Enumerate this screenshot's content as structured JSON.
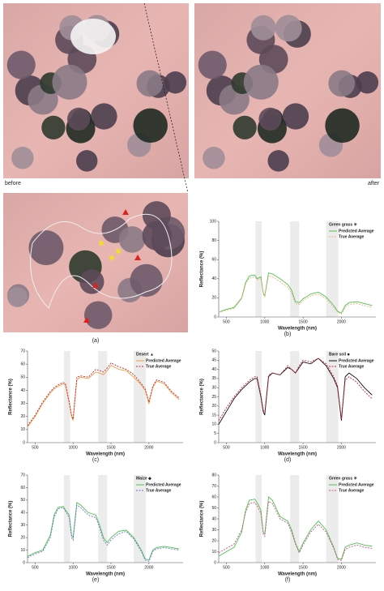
{
  "figure": {
    "before_label": "before",
    "after_label": "after",
    "image_label": "(a)"
  },
  "chart_data": [
    {
      "type": "line",
      "panel_label": "(b)",
      "legend_title": "Green grass ✳",
      "x_label": "Wavelength (nm)",
      "y_label": "Reflectance (%)",
      "xlim": [
        400,
        2450
      ],
      "xticks": [
        500,
        1000,
        1500,
        2000
      ],
      "ylim": [
        0,
        100
      ],
      "yticks": [
        0,
        20,
        40,
        60,
        80,
        100
      ],
      "shaded_bands": [
        [
          880,
          960
        ],
        [
          1330,
          1450
        ],
        [
          1800,
          1960
        ]
      ],
      "x": [
        400,
        500,
        600,
        700,
        750,
        800,
        870,
        900,
        950,
        980,
        1000,
        1050,
        1100,
        1200,
        1300,
        1350,
        1400,
        1450,
        1500,
        1600,
        1700,
        1800,
        1900,
        1950,
        2000,
        2050,
        2100,
        2200,
        2300,
        2400
      ],
      "series": [
        {
          "name": "Predicted Average",
          "color": "#4cc24c",
          "dash": false,
          "values": [
            5,
            8,
            10,
            20,
            36,
            43,
            44,
            40,
            42,
            25,
            22,
            46,
            45,
            40,
            34,
            28,
            16,
            15,
            19,
            24,
            26,
            21,
            12,
            6,
            4,
            12,
            15,
            16,
            14,
            12
          ]
        },
        {
          "name": "True Average",
          "color": "#f0b080",
          "dash": true,
          "values": [
            5,
            7,
            9,
            19,
            34,
            41,
            42,
            39,
            40,
            24,
            21,
            43,
            42,
            37,
            31,
            25,
            14,
            13,
            17,
            22,
            24,
            19,
            10,
            5,
            3,
            10,
            13,
            14,
            12,
            10
          ]
        }
      ]
    },
    {
      "type": "line",
      "panel_label": "(c)",
      "legend_title": "Desert ▲",
      "x_label": "Wavelength (nm)",
      "y_label": "Reflectance (%)",
      "xlim": [
        400,
        2450
      ],
      "xticks": [
        500,
        1000,
        1500,
        2000
      ],
      "ylim": [
        0,
        70
      ],
      "yticks": [
        0,
        10,
        20,
        30,
        40,
        50,
        60,
        70
      ],
      "shaded_bands": [
        [
          880,
          960
        ],
        [
          1330,
          1450
        ],
        [
          1800,
          1960
        ]
      ],
      "x": [
        400,
        500,
        600,
        700,
        750,
        800,
        870,
        900,
        950,
        980,
        1000,
        1050,
        1100,
        1200,
        1300,
        1350,
        1400,
        1450,
        1500,
        1600,
        1700,
        1800,
        1900,
        1950,
        2000,
        2050,
        2100,
        2200,
        2300,
        2400
      ],
      "series": [
        {
          "name": "Predicted Average",
          "color": "#e8a040",
          "dash": false,
          "values": [
            12,
            20,
            30,
            38,
            41,
            43,
            45,
            44,
            30,
            20,
            17,
            48,
            50,
            49,
            54,
            53,
            52,
            55,
            59,
            56,
            55,
            50,
            44,
            40,
            30,
            42,
            47,
            45,
            38,
            33
          ]
        },
        {
          "name": "True Average",
          "color": "#d02030",
          "dash": true,
          "values": [
            13,
            21,
            31,
            39,
            42,
            44,
            46,
            45,
            31,
            21,
            18,
            50,
            51,
            50,
            56,
            55,
            54,
            57,
            61,
            58,
            56,
            52,
            45,
            41,
            31,
            43,
            48,
            46,
            39,
            34
          ]
        }
      ]
    },
    {
      "type": "line",
      "panel_label": "(d)",
      "legend_title": "Bare soil ■",
      "x_label": "Wavelength (nm)",
      "y_label": "Reflectance (%)",
      "xlim": [
        400,
        2450
      ],
      "xticks": [
        500,
        1000,
        1500,
        2000
      ],
      "ylim": [
        0,
        50
      ],
      "yticks": [
        0,
        5,
        10,
        15,
        20,
        25,
        30,
        35,
        40,
        45,
        50
      ],
      "shaded_bands": [
        [
          880,
          960
        ],
        [
          1330,
          1450
        ],
        [
          1800,
          1960
        ]
      ],
      "x": [
        400,
        500,
        600,
        700,
        750,
        800,
        870,
        900,
        950,
        980,
        1000,
        1050,
        1100,
        1200,
        1300,
        1350,
        1400,
        1450,
        1500,
        1600,
        1700,
        1800,
        1900,
        1950,
        2000,
        2050,
        2100,
        2200,
        2300,
        2400
      ],
      "series": [
        {
          "name": "Predicted Average",
          "color": "#111111",
          "dash": false,
          "values": [
            10,
            17,
            24,
            29,
            31,
            33,
            35,
            35,
            25,
            17,
            15,
            36,
            38,
            37,
            41,
            40,
            38,
            41,
            44,
            43,
            46,
            42,
            35,
            30,
            12,
            36,
            38,
            35,
            30,
            26
          ]
        },
        {
          "name": "True Average",
          "color": "#d02030",
          "dash": true,
          "values": [
            12,
            19,
            25,
            30,
            32,
            34,
            36,
            36,
            26,
            18,
            16,
            37,
            38,
            37,
            42,
            40,
            38,
            42,
            45,
            44,
            46,
            43,
            36,
            31,
            13,
            34,
            36,
            33,
            28,
            24
          ]
        }
      ]
    },
    {
      "type": "line",
      "panel_label": "(e)",
      "legend_title": "Maize ◆",
      "x_label": "Wavelength (nm)",
      "y_label": "Reflectance (%)",
      "xlim": [
        400,
        2450
      ],
      "xticks": [
        500,
        1000,
        1500,
        2000
      ],
      "ylim": [
        0,
        70
      ],
      "yticks": [
        0,
        10,
        20,
        30,
        40,
        50,
        60,
        70
      ],
      "shaded_bands": [
        [
          880,
          960
        ],
        [
          1330,
          1450
        ],
        [
          1800,
          1960
        ]
      ],
      "x": [
        400,
        500,
        600,
        700,
        750,
        800,
        870,
        900,
        950,
        980,
        1000,
        1050,
        1100,
        1200,
        1300,
        1350,
        1400,
        1450,
        1500,
        1600,
        1700,
        1800,
        1900,
        1950,
        2000,
        2050,
        2100,
        2200,
        2300,
        2400
      ],
      "series": [
        {
          "name": "Predicted Average",
          "color": "#4cc24c",
          "dash": false,
          "values": [
            5,
            8,
            10,
            22,
            38,
            44,
            45,
            42,
            38,
            22,
            20,
            48,
            46,
            40,
            38,
            30,
            20,
            16,
            20,
            25,
            26,
            20,
            10,
            3,
            2,
            10,
            12,
            13,
            12,
            11
          ]
        },
        {
          "name": "True Average",
          "color": "#7070e0",
          "dash": true,
          "values": [
            4,
            7,
            9,
            20,
            36,
            43,
            44,
            41,
            36,
            20,
            18,
            46,
            44,
            38,
            36,
            28,
            18,
            14,
            18,
            23,
            25,
            19,
            9,
            2,
            1,
            9,
            11,
            12,
            11,
            10
          ]
        }
      ]
    },
    {
      "type": "line",
      "panel_label": "(f)",
      "legend_title": "Green grass ✳",
      "x_label": "Wavelength (nm)",
      "y_label": "Reflectance (%)",
      "xlim": [
        400,
        2450
      ],
      "xticks": [
        500,
        1000,
        1500,
        2000
      ],
      "ylim": [
        0,
        80
      ],
      "yticks": [
        0,
        10,
        20,
        30,
        40,
        50,
        60,
        70,
        80
      ],
      "shaded_bands": [
        [
          880,
          960
        ],
        [
          1330,
          1450
        ],
        [
          1800,
          1960
        ]
      ],
      "x": [
        400,
        500,
        600,
        700,
        750,
        800,
        870,
        900,
        950,
        980,
        1000,
        1050,
        1100,
        1200,
        1300,
        1350,
        1400,
        1450,
        1500,
        1600,
        1700,
        1800,
        1900,
        1950,
        2000,
        2050,
        2100,
        2200,
        2300,
        2400
      ],
      "series": [
        {
          "name": "Predicted Average",
          "color": "#4cc24c",
          "dash": false,
          "values": [
            6,
            10,
            14,
            28,
            48,
            57,
            58,
            55,
            48,
            28,
            26,
            60,
            57,
            42,
            38,
            30,
            18,
            10,
            18,
            30,
            38,
            30,
            14,
            4,
            3,
            14,
            16,
            18,
            16,
            15
          ]
        },
        {
          "name": "True Average",
          "color": "#d05090",
          "dash": true,
          "values": [
            9,
            13,
            17,
            30,
            46,
            54,
            55,
            52,
            45,
            26,
            24,
            56,
            54,
            40,
            36,
            28,
            17,
            9,
            16,
            28,
            35,
            28,
            13,
            3,
            2,
            12,
            14,
            16,
            14,
            13
          ]
        }
      ]
    }
  ]
}
